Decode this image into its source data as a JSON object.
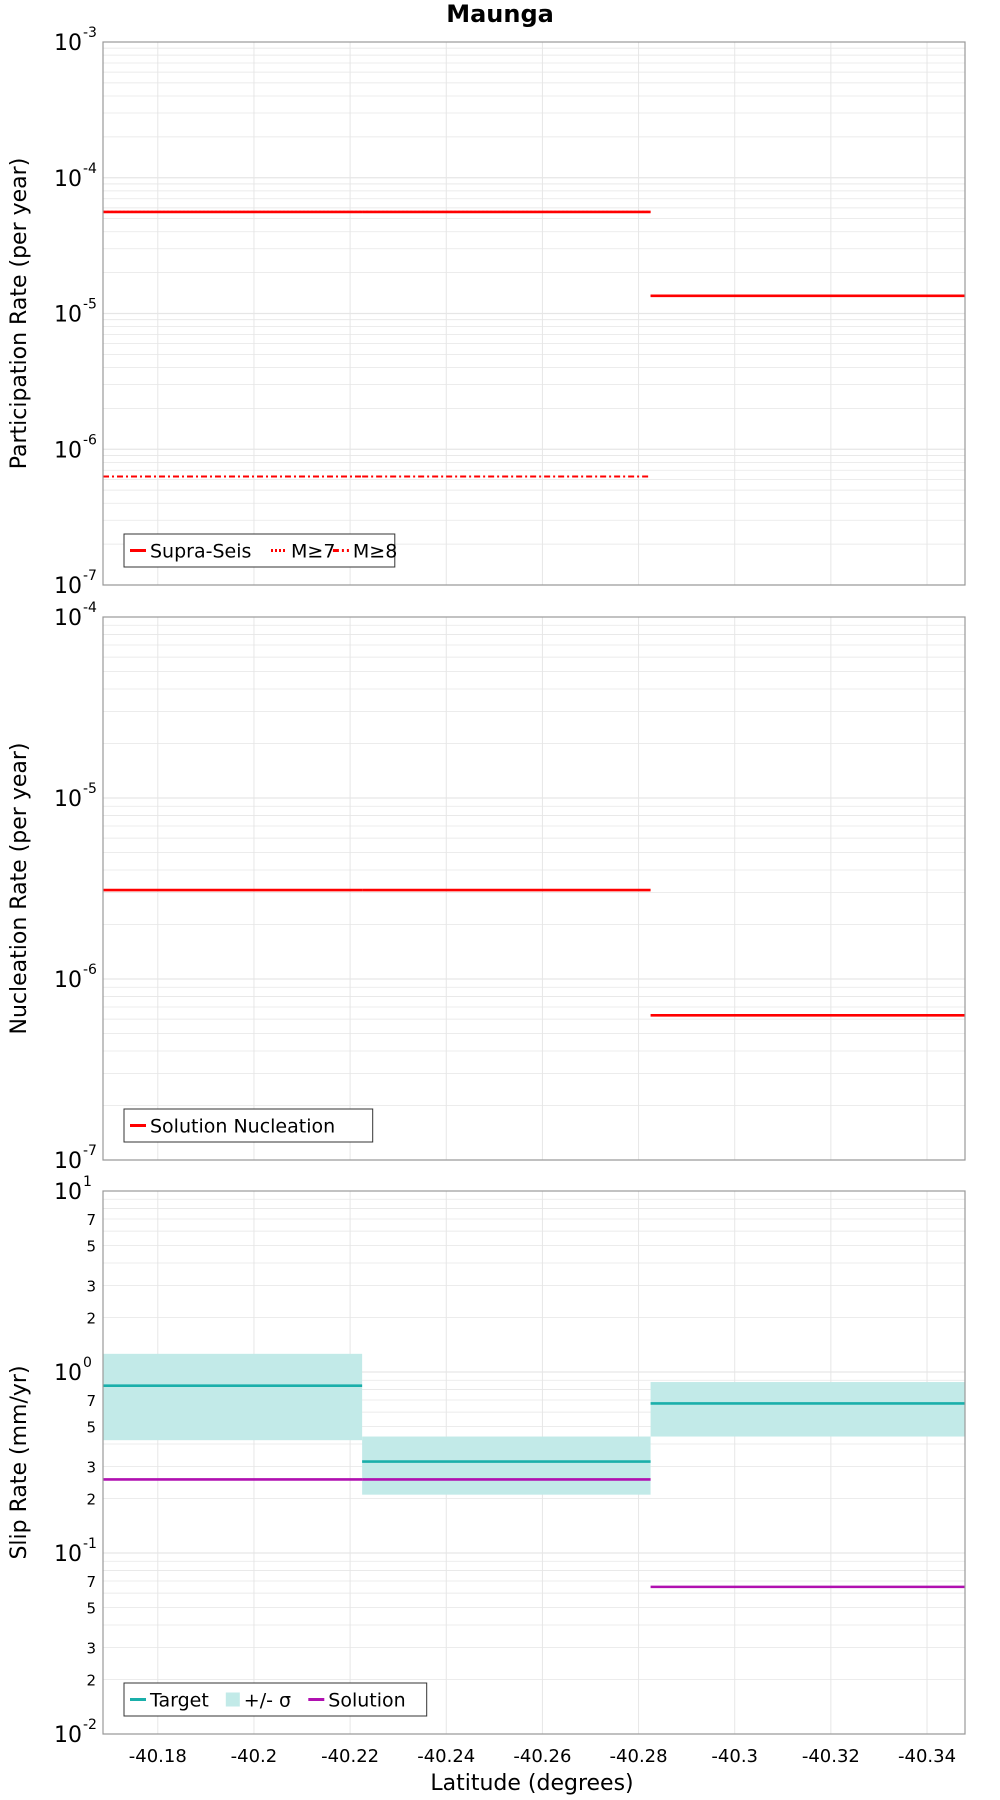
{
  "figure_title": "Maunga",
  "x_axis": {
    "label": "Latitude (degrees)",
    "range": [
      -40.1686,
      -40.3479
    ],
    "ticks": [
      -40.18,
      -40.2,
      -40.22,
      -40.24,
      -40.26,
      -40.28,
      -40.3,
      -40.32,
      -40.34
    ],
    "tick_labels": [
      "-40.18",
      "-40.2",
      "-40.22",
      "-40.24",
      "-40.26",
      "-40.28",
      "-40.3",
      "-40.32",
      "-40.34"
    ]
  },
  "colors": {
    "red": "#ff0000",
    "teal": "#1aafaa",
    "teal_band": "#c2eae8",
    "magenta": "#b010b0",
    "grid": "#e6e6e6",
    "frame": "#999999"
  },
  "chart_data": [
    {
      "type": "line",
      "ylabel": "Participation Rate (per year)",
      "yscale": "log",
      "ylim": [
        1e-07,
        0.001
      ],
      "ytick_labels": [
        {
          "base": "10",
          "exp": "-7"
        },
        {
          "base": "10",
          "exp": "-6"
        },
        {
          "base": "10",
          "exp": "-5"
        },
        {
          "base": "10",
          "exp": "-4"
        },
        {
          "base": "10",
          "exp": "-3"
        }
      ],
      "grid": true,
      "legend_position": "bottom-left",
      "legend": [
        {
          "label": "Supra-Seis",
          "style": "solid"
        },
        {
          "label": "M≥7",
          "style": "dotted"
        },
        {
          "label": "M≥8",
          "style": "dashdot"
        }
      ],
      "series": [
        {
          "name": "Supra-Seis",
          "style": "solid",
          "segments": [
            {
              "x": [
                -40.1686,
                -40.2225
              ],
              "y": 5.6e-05
            },
            {
              "x": [
                -40.2225,
                -40.2825
              ],
              "y": 5.6e-05
            },
            {
              "x": [
                -40.2825,
                -40.3479
              ],
              "y": 1.35e-05
            }
          ]
        },
        {
          "name": "M≥7",
          "style": "dotted",
          "segments": [
            {
              "x": [
                -40.1686,
                -40.2225
              ],
              "y": 5.6e-05
            },
            {
              "x": [
                -40.2225,
                -40.2825
              ],
              "y": 5.6e-05
            },
            {
              "x": [
                -40.2825,
                -40.3479
              ],
              "y": 1.35e-05
            }
          ]
        },
        {
          "name": "M≥8",
          "style": "dashdot",
          "segments": [
            {
              "x": [
                -40.1686,
                -40.2225
              ],
              "y": 6.3e-07
            },
            {
              "x": [
                -40.2225,
                -40.2825
              ],
              "y": 6.3e-07
            }
          ]
        }
      ]
    },
    {
      "type": "line",
      "ylabel": "Nucleation Rate (per year)",
      "yscale": "log",
      "ylim": [
        1e-07,
        0.0001
      ],
      "ytick_labels": [
        {
          "base": "10",
          "exp": "-7"
        },
        {
          "base": "10",
          "exp": "-6"
        },
        {
          "base": "10",
          "exp": "-5"
        },
        {
          "base": "10",
          "exp": "-4"
        }
      ],
      "grid": true,
      "legend_position": "bottom-left",
      "legend": [
        {
          "label": "Solution Nucleation",
          "style": "solid"
        }
      ],
      "series": [
        {
          "name": "Solution Nucleation",
          "style": "solid",
          "segments": [
            {
              "x": [
                -40.1686,
                -40.2225
              ],
              "y": 3.1e-06
            },
            {
              "x": [
                -40.2225,
                -40.2825
              ],
              "y": 3.1e-06
            },
            {
              "x": [
                -40.2825,
                -40.3479
              ],
              "y": 6.3e-07
            }
          ]
        }
      ]
    },
    {
      "type": "line",
      "ylabel": "Slip Rate (mm/yr)",
      "yscale": "log",
      "ylim": [
        0.01,
        10
      ],
      "ytick_labels": [
        {
          "base": "10",
          "exp": "-2"
        },
        {
          "base": "10",
          "exp": "-1"
        },
        {
          "base": "10",
          "exp": "0"
        },
        {
          "base": "10",
          "exp": "1"
        }
      ],
      "minor_tick_labels": [
        "2",
        "3",
        "5",
        "7"
      ],
      "grid": true,
      "legend_position": "bottom-left",
      "legend": [
        {
          "label": "Target",
          "style": "solid"
        },
        {
          "label": "+/- σ",
          "style": "band"
        },
        {
          "label": "Solution",
          "style": "solid"
        }
      ],
      "bands": [
        {
          "name": "+/- σ",
          "segments": [
            {
              "x": [
                -40.1686,
                -40.2225
              ],
              "low": 0.42,
              "high": 1.26
            },
            {
              "x": [
                -40.2225,
                -40.2825
              ],
              "low": 0.21,
              "high": 0.44
            },
            {
              "x": [
                -40.2825,
                -40.3479
              ],
              "low": 0.44,
              "high": 0.88
            }
          ]
        }
      ],
      "series": [
        {
          "name": "Target",
          "segments": [
            {
              "x": [
                -40.1686,
                -40.2225
              ],
              "y": 0.84
            },
            {
              "x": [
                -40.2225,
                -40.2825
              ],
              "y": 0.32
            },
            {
              "x": [
                -40.2825,
                -40.3479
              ],
              "y": 0.67
            }
          ]
        },
        {
          "name": "Solution",
          "segments": [
            {
              "x": [
                -40.1686,
                -40.2225
              ],
              "y": 0.255
            },
            {
              "x": [
                -40.2225,
                -40.2825
              ],
              "y": 0.255
            },
            {
              "x": [
                -40.2825,
                -40.3479
              ],
              "y": 0.065
            }
          ]
        }
      ]
    }
  ]
}
